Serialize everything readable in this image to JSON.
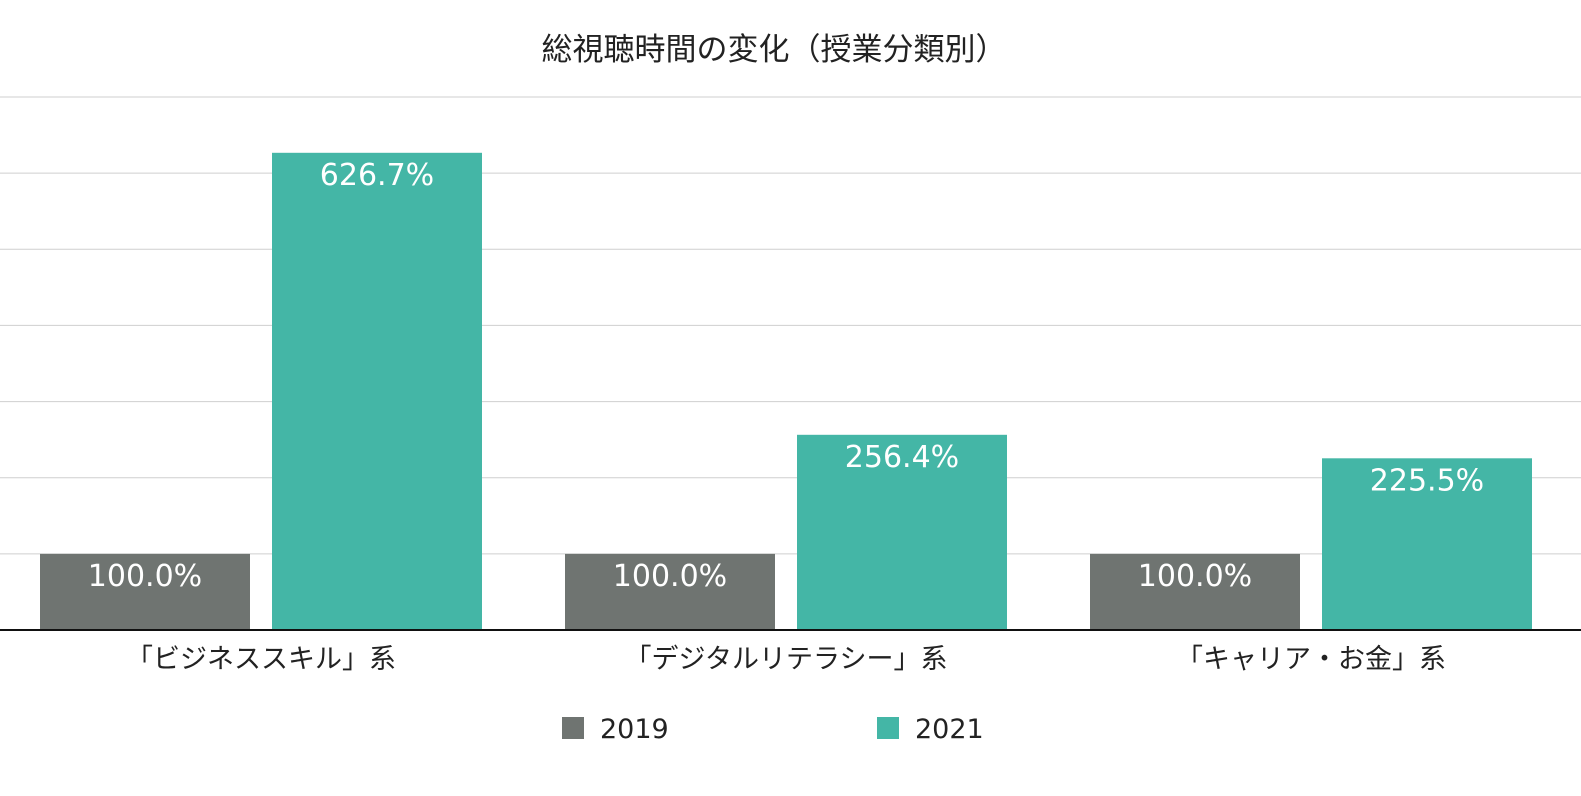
{
  "chart_data": {
    "type": "bar",
    "title": "総視聴時間の変化（授業分類別）",
    "categories": [
      "「ビジネススキル」系",
      "「デジタルリテラシー」系",
      "「キャリア・お金」系"
    ],
    "series": [
      {
        "name": "2019",
        "color": "#6f7471",
        "values": [
          100.0,
          100.0,
          100.0
        ],
        "labels": [
          "100.0%",
          "100.0%",
          "100.0%"
        ]
      },
      {
        "name": "2021",
        "color": "#44b6a6",
        "values": [
          626.7,
          256.4,
          225.5
        ],
        "labels": [
          "626.7%",
          "256.4%",
          "225.5%"
        ]
      }
    ],
    "ylim": [
      0,
      700
    ],
    "grid": true,
    "legend_position": "bottom",
    "xlabel": "",
    "ylabel": ""
  }
}
